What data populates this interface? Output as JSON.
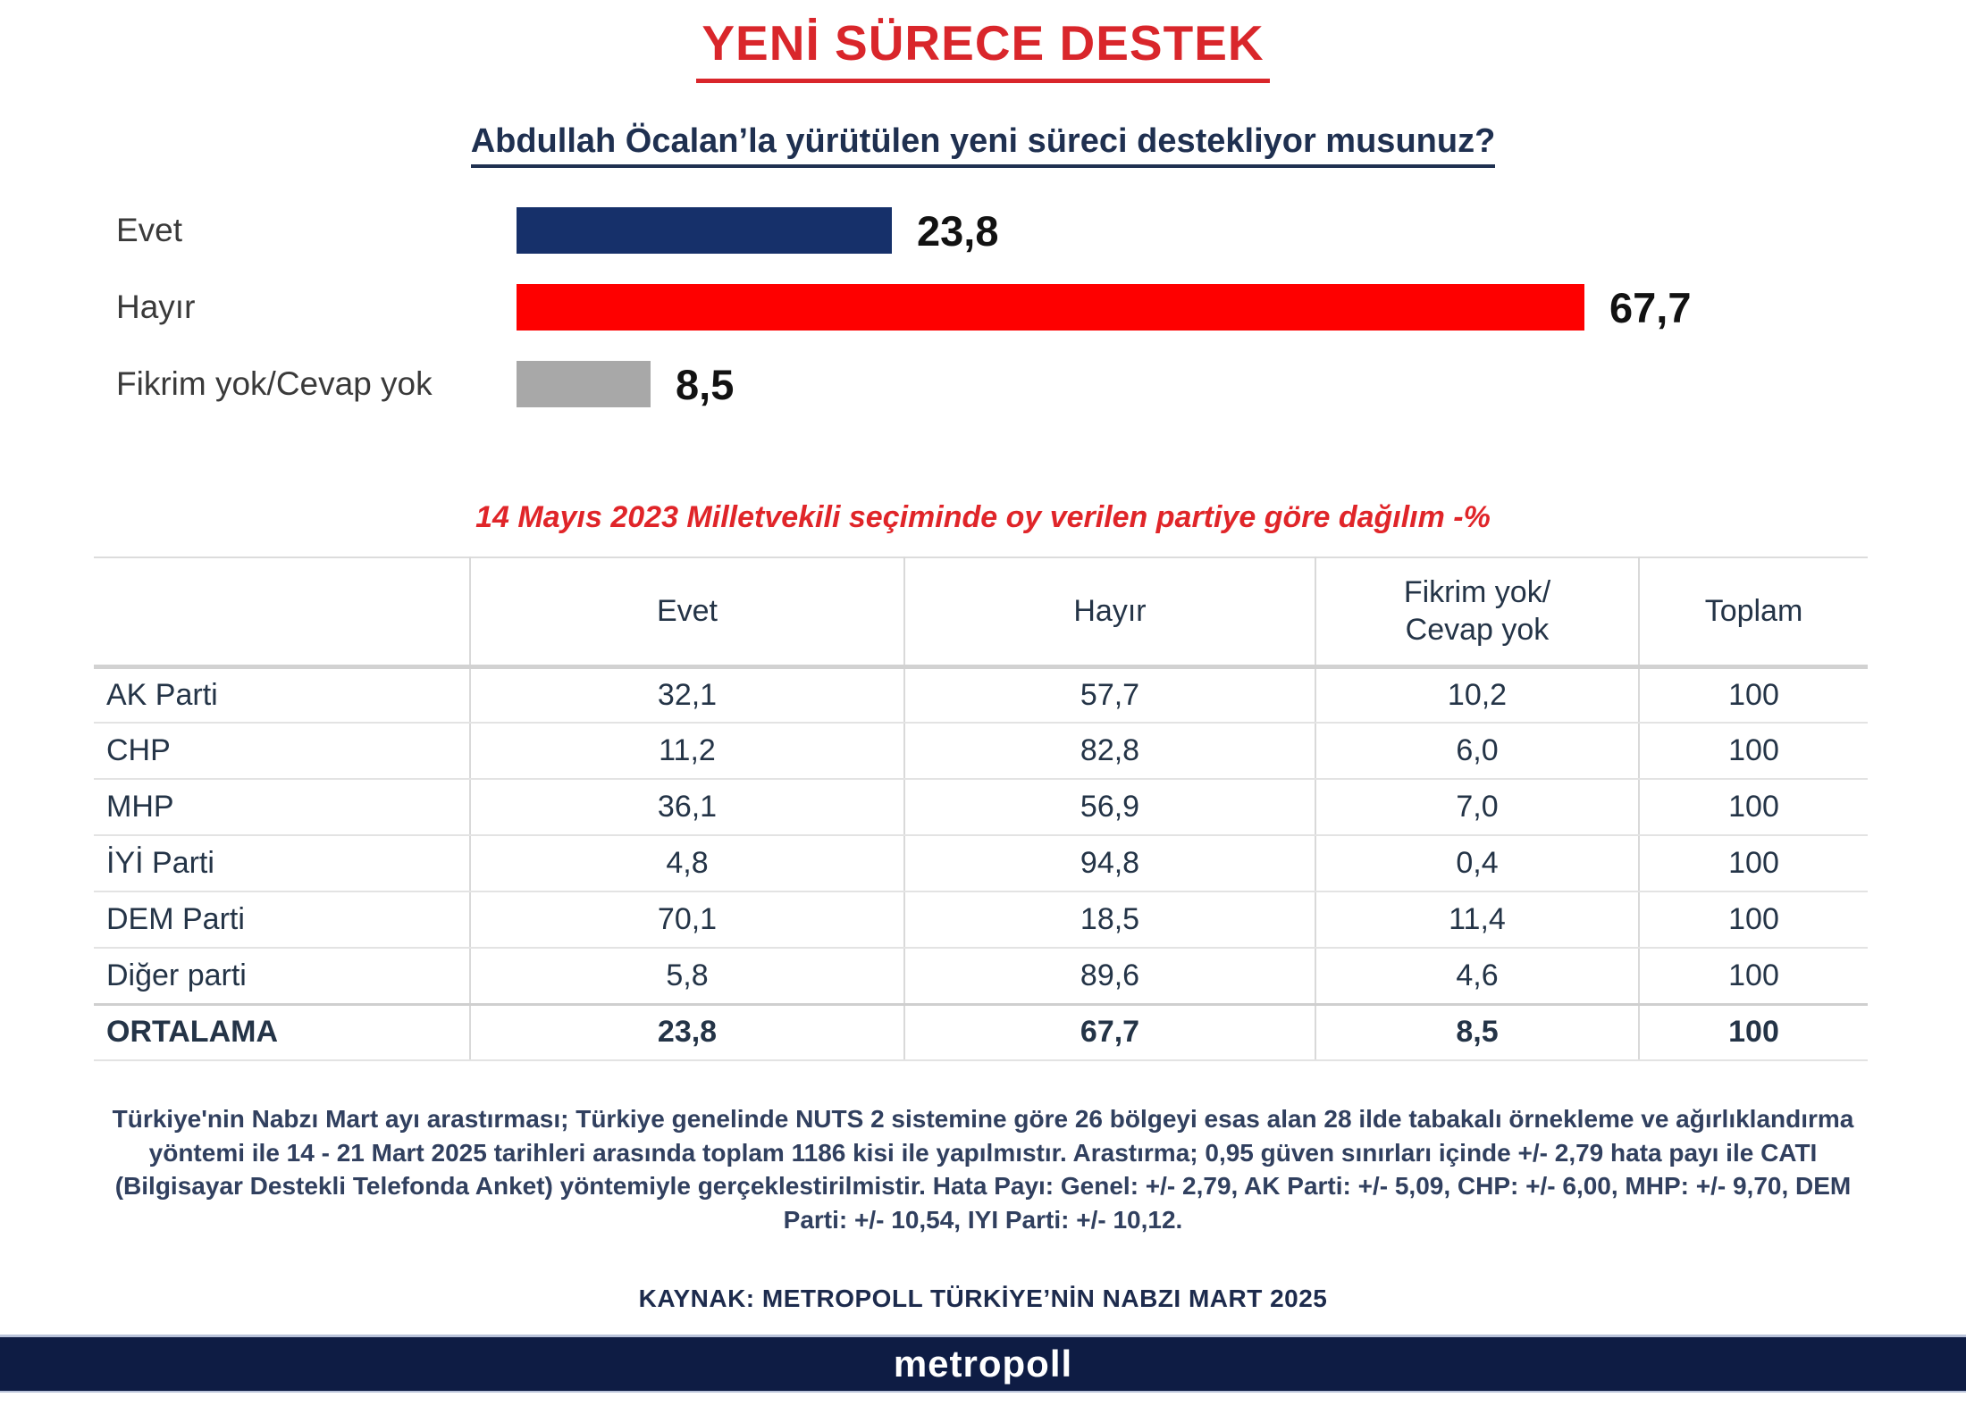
{
  "chart_data": [
    {
      "type": "bar",
      "orientation": "horizontal",
      "title": "YENİ SÜRECE DESTEK",
      "subtitle": "Abdullah Öcalan’la yürütülen yeni süreci destekliyor musunuz?",
      "categories": [
        "Evet",
        "Hayır",
        "Fikrim yok/Cevap yok"
      ],
      "values": [
        23.8,
        67.7,
        8.5
      ],
      "value_labels": [
        "23,8",
        "67,7",
        "8,5"
      ],
      "colors": [
        "#16306a",
        "#fe0000",
        "#a8a8a8"
      ],
      "xlim": [
        0,
        100
      ],
      "grid": false,
      "legend": false
    },
    {
      "type": "table",
      "title": "14 Mayıs 2023 Milletvekili seçiminde oy verilen partiye göre dağılım -%",
      "columns": [
        "",
        "Evet",
        "Hayır",
        "Fikrim yok/\nCevap yok",
        "Toplam"
      ],
      "rows": [
        [
          "AK Parti",
          "32,1",
          "57,7",
          "10,2",
          "100"
        ],
        [
          "CHP",
          "11,2",
          "82,8",
          "6,0",
          "100"
        ],
        [
          "MHP",
          "36,1",
          "56,9",
          "7,0",
          "100"
        ],
        [
          "İYİ Parti",
          "4,8",
          "94,8",
          "0,4",
          "100"
        ],
        [
          "DEM Parti",
          "70,1",
          "18,5",
          "11,4",
          "100"
        ],
        [
          "Diğer parti",
          "5,8",
          "89,6",
          "4,6",
          "100"
        ],
        [
          "ORTALAMA",
          "23,8",
          "67,7",
          "8,5",
          "100"
        ]
      ],
      "bold_row": "ORTALAMA"
    }
  ],
  "footer": {
    "methodology": "Türkiye'nin Nabzı Mart ayı arastırması; Türkiye genelinde NUTS 2 sistemine göre 26 bölgeyi esas alan 28 ilde tabakalı örnekleme ve ağırlıklandırma yöntemi ile 14 - 21 Mart 2025 tarihleri arasında toplam 1186 kisi ile yapılmıstır. Arastırma; 0,95 güven sınırları içinde +/- 2,79 hata payı ile CATI (Bilgisayar Destekli Telefonda Anket) yöntemiyle gerçeklestirilmistir. Hata Payı: Genel: +/- 2,79, AK Parti: +/- 5,09, CHP: +/- 6,00, MHP: +/- 9,70, DEM Parti: +/- 10,54, IYI Parti: +/- 10,12.",
    "source": "KAYNAK: METROPOLL TÜRKİYE’NİN NABZI MART 2025",
    "brand": "metropoll"
  },
  "colors": {
    "title_red": "#d9262b",
    "subtitle_navy": "#1f3050",
    "bar_navy": "#16306a",
    "bar_red": "#fe0000",
    "bar_gray": "#a8a8a8",
    "footer_bar_navy": "#0e1c44"
  }
}
